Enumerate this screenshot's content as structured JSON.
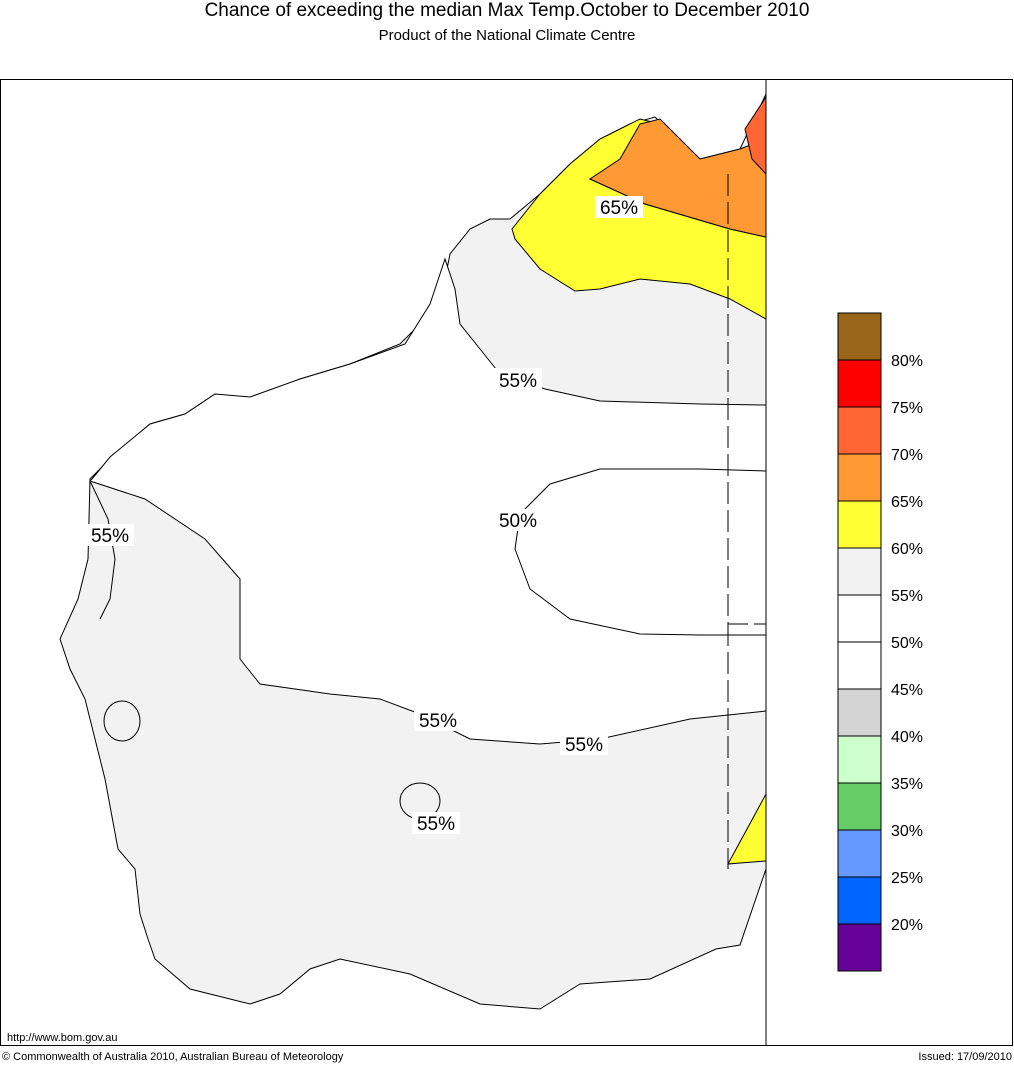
{
  "header": {
    "title": "Chance of exceeding the median Max Temp.October to December 2010",
    "subtitle": "Product of the National Climate Centre"
  },
  "map": {
    "contour_labels": [
      {
        "text": "65%"
      },
      {
        "text": "55%"
      },
      {
        "text": "55%"
      },
      {
        "text": "50%"
      },
      {
        "text": "55%"
      },
      {
        "text": "55%"
      },
      {
        "text": "55%"
      }
    ],
    "region_colors": {
      "grey_55_60": "#f2f2f2",
      "yellow_60_65": "#ffff33",
      "orange_65_70": "#ff9933",
      "red_orange_70_75": "#ff6633"
    }
  },
  "legend": {
    "bins": [
      {
        "color": "#996619",
        "label": "80%"
      },
      {
        "color": "#ff0000",
        "label": "75%"
      },
      {
        "color": "#ff6633",
        "label": "70%"
      },
      {
        "color": "#ff9933",
        "label": "65%"
      },
      {
        "color": "#ffff33",
        "label": "60%"
      },
      {
        "color": "#f2f2f2",
        "label": "55%"
      },
      {
        "color": "#ffffff",
        "label": "50%"
      },
      {
        "color": "#ffffff",
        "label": "45%"
      },
      {
        "color": "#d4d4d4",
        "label": "40%"
      },
      {
        "color": "#ccffcc",
        "label": "35%"
      },
      {
        "color": "#66cc66",
        "label": "30%"
      },
      {
        "color": "#6699ff",
        "label": "25%"
      },
      {
        "color": "#0066ff",
        "label": "20%"
      },
      {
        "color": "#660099",
        "label": ""
      }
    ]
  },
  "footer": {
    "url": "http://www.bom.gov.au",
    "copyright": "© Commonwealth of Australia 2010, Australian Bureau of Meteorology",
    "issued": "Issued: 17/09/2010"
  }
}
